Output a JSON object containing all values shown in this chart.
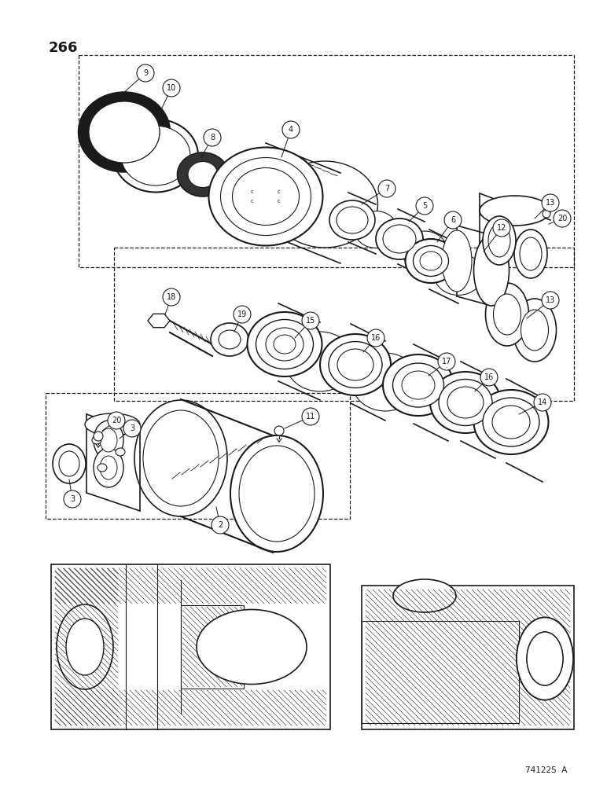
{
  "page_number": "266",
  "document_number": "741225 A",
  "bg_color": "#ffffff",
  "lc": "#1a1a1a",
  "figsize": [
    7.72,
    10.0
  ],
  "dpi": 100,
  "xlim": [
    0,
    772
  ],
  "ylim": [
    0,
    1000
  ]
}
